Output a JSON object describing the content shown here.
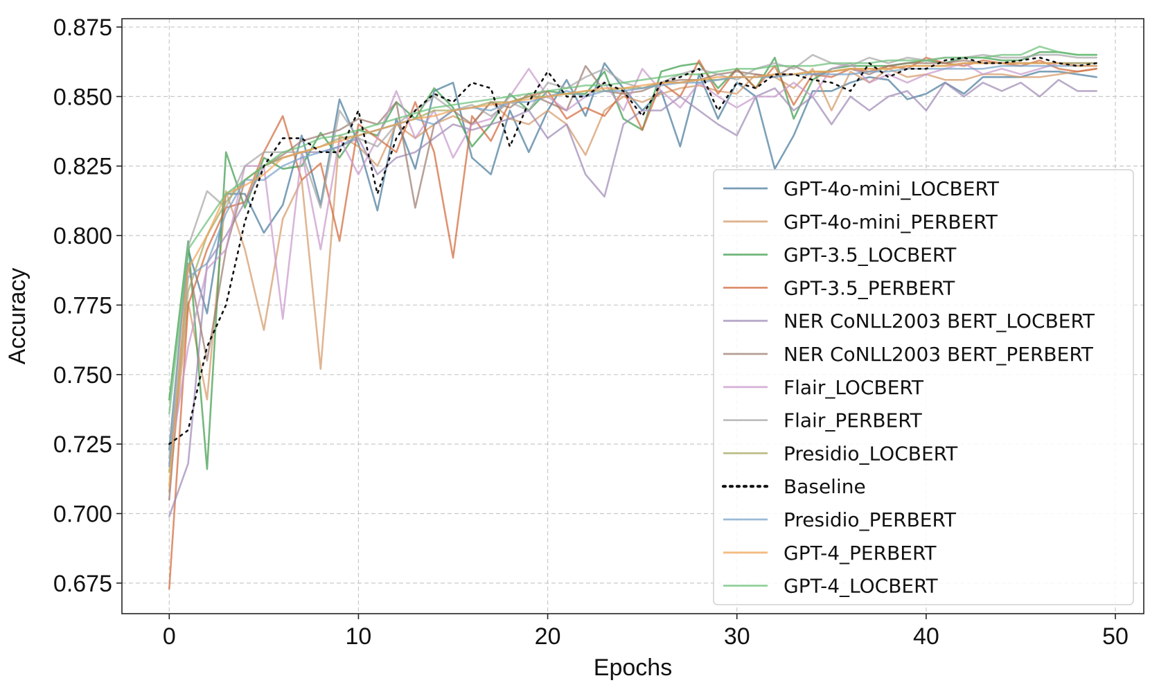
{
  "chart_data": {
    "type": "line",
    "title": "",
    "xlabel": "Epochs",
    "ylabel": "Accuracy",
    "xlim": [
      -2.5,
      51.5
    ],
    "ylim": [
      0.664,
      0.878
    ],
    "xticks": [
      0,
      10,
      20,
      30,
      40,
      50
    ],
    "xtick_labels": [
      "0",
      "10",
      "20",
      "30",
      "40",
      "50"
    ],
    "yticks": [
      0.675,
      0.7,
      0.725,
      0.75,
      0.775,
      0.8,
      0.825,
      0.85,
      0.875
    ],
    "ytick_labels": [
      "0.675",
      "0.700",
      "0.725",
      "0.750",
      "0.775",
      "0.800",
      "0.825",
      "0.850",
      "0.875"
    ],
    "grid": true,
    "legend_position": "center-right",
    "series": [
      {
        "name": "GPT-4o-mini_LOCBERT",
        "color": "#4a7c9d",
        "dashed": false,
        "values": [
          0.723,
          0.795,
          0.772,
          0.815,
          0.815,
          0.801,
          0.811,
          0.836,
          0.811,
          0.849,
          0.833,
          0.809,
          0.842,
          0.824,
          0.852,
          0.855,
          0.828,
          0.822,
          0.845,
          0.83,
          0.845,
          0.856,
          0.843,
          0.862,
          0.853,
          0.845,
          0.852,
          0.832,
          0.858,
          0.842,
          0.855,
          0.85,
          0.824,
          0.836,
          0.852,
          0.852,
          0.855,
          0.857,
          0.856,
          0.849,
          0.851,
          0.855,
          0.851,
          0.857,
          0.857,
          0.857,
          0.859,
          0.859,
          0.858,
          0.857
        ]
      },
      {
        "name": "GPT-4o-mini_PERBERT",
        "color": "#d49a6a",
        "dashed": false,
        "values": [
          0.708,
          0.776,
          0.741,
          0.816,
          0.795,
          0.766,
          0.806,
          0.82,
          0.752,
          0.836,
          0.832,
          0.825,
          0.84,
          0.835,
          0.84,
          0.843,
          0.84,
          0.848,
          0.842,
          0.84,
          0.845,
          0.84,
          0.829,
          0.845,
          0.85,
          0.848,
          0.851,
          0.853,
          0.854,
          0.852,
          0.851,
          0.858,
          0.857,
          0.853,
          0.86,
          0.845,
          0.859,
          0.855,
          0.86,
          0.857,
          0.858,
          0.856,
          0.856,
          0.858,
          0.858,
          0.857,
          0.857,
          0.858,
          0.859,
          0.86
        ]
      },
      {
        "name": "GPT-3.5_LOCBERT",
        "color": "#3f9c4c",
        "dashed": false,
        "values": [
          0.741,
          0.798,
          0.716,
          0.83,
          0.81,
          0.828,
          0.824,
          0.825,
          0.837,
          0.828,
          0.838,
          0.836,
          0.848,
          0.842,
          0.853,
          0.846,
          0.832,
          0.84,
          0.851,
          0.845,
          0.852,
          0.851,
          0.851,
          0.859,
          0.842,
          0.838,
          0.859,
          0.861,
          0.862,
          0.853,
          0.86,
          0.853,
          0.864,
          0.842,
          0.856,
          0.86,
          0.861,
          0.861,
          0.861,
          0.862,
          0.863,
          0.862,
          0.864,
          0.864,
          0.863,
          0.863,
          0.866,
          0.866,
          0.865,
          0.865
        ]
      },
      {
        "name": "GPT-3.5_PERBERT",
        "color": "#d26a3c",
        "dashed": false,
        "values": [
          0.673,
          0.775,
          0.795,
          0.81,
          0.812,
          0.83,
          0.843,
          0.82,
          0.826,
          0.798,
          0.84,
          0.835,
          0.83,
          0.848,
          0.83,
          0.792,
          0.843,
          0.834,
          0.848,
          0.85,
          0.852,
          0.842,
          0.846,
          0.843,
          0.852,
          0.838,
          0.855,
          0.85,
          0.863,
          0.851,
          0.86,
          0.853,
          0.861,
          0.847,
          0.858,
          0.857,
          0.86,
          0.859,
          0.861,
          0.86,
          0.864,
          0.862,
          0.861,
          0.863,
          0.862,
          0.861,
          0.863,
          0.86,
          0.859,
          0.86
        ]
      },
      {
        "name": "NER CoNLL2003 BERT_LOCBERT",
        "color": "#9f8ab6",
        "dashed": false,
        "values": [
          0.699,
          0.718,
          0.79,
          0.8,
          0.812,
          0.825,
          0.828,
          0.83,
          0.83,
          0.832,
          0.835,
          0.822,
          0.828,
          0.83,
          0.835,
          0.84,
          0.838,
          0.84,
          0.842,
          0.845,
          0.835,
          0.84,
          0.822,
          0.814,
          0.84,
          0.845,
          0.845,
          0.85,
          0.845,
          0.84,
          0.836,
          0.85,
          0.853,
          0.845,
          0.85,
          0.84,
          0.85,
          0.845,
          0.85,
          0.852,
          0.845,
          0.855,
          0.85,
          0.855,
          0.852,
          0.855,
          0.85,
          0.856,
          0.852,
          0.852
        ]
      },
      {
        "name": "NER CoNLL2003 BERT_PERBERT",
        "color": "#9c7d70",
        "dashed": false,
        "values": [
          0.705,
          0.79,
          0.755,
          0.795,
          0.82,
          0.825,
          0.829,
          0.834,
          0.836,
          0.838,
          0.842,
          0.84,
          0.848,
          0.81,
          0.84,
          0.845,
          0.84,
          0.848,
          0.846,
          0.851,
          0.848,
          0.845,
          0.861,
          0.852,
          0.851,
          0.852,
          0.855,
          0.856,
          0.856,
          0.858,
          0.859,
          0.858,
          0.857,
          0.861,
          0.858,
          0.859,
          0.86,
          0.858,
          0.861,
          0.862,
          0.862,
          0.862,
          0.863,
          0.862,
          0.862,
          0.862,
          0.862,
          0.862,
          0.862,
          0.862
        ]
      },
      {
        "name": "Flair_LOCBERT",
        "color": "#c99acc",
        "dashed": false,
        "values": [
          0.718,
          0.76,
          0.788,
          0.795,
          0.825,
          0.825,
          0.77,
          0.83,
          0.795,
          0.835,
          0.822,
          0.835,
          0.852,
          0.835,
          0.845,
          0.828,
          0.84,
          0.842,
          0.85,
          0.86,
          0.85,
          0.845,
          0.85,
          0.855,
          0.845,
          0.86,
          0.852,
          0.846,
          0.855,
          0.85,
          0.846,
          0.85,
          0.85,
          0.855,
          0.85,
          0.86,
          0.862,
          0.855,
          0.858,
          0.855,
          0.858,
          0.86,
          0.862,
          0.858,
          0.86,
          0.858,
          0.86,
          0.862,
          0.861,
          0.861
        ]
      },
      {
        "name": "Flair_PERBERT",
        "color": "#a8a8a8",
        "dashed": false,
        "values": [
          0.72,
          0.796,
          0.816,
          0.81,
          0.825,
          0.83,
          0.83,
          0.83,
          0.81,
          0.845,
          0.835,
          0.832,
          0.84,
          0.845,
          0.85,
          0.845,
          0.847,
          0.843,
          0.848,
          0.845,
          0.855,
          0.853,
          0.857,
          0.86,
          0.855,
          0.853,
          0.855,
          0.858,
          0.86,
          0.858,
          0.856,
          0.86,
          0.862,
          0.86,
          0.865,
          0.862,
          0.861,
          0.864,
          0.862,
          0.864,
          0.863,
          0.864,
          0.864,
          0.865,
          0.864,
          0.864,
          0.865,
          0.865,
          0.864,
          0.864
        ]
      },
      {
        "name": "Presidio_LOCBERT",
        "color": "#a6a862",
        "dashed": false,
        "values": [
          0.715,
          0.78,
          0.8,
          0.812,
          0.82,
          0.825,
          0.828,
          0.83,
          0.832,
          0.835,
          0.836,
          0.838,
          0.84,
          0.842,
          0.845,
          0.845,
          0.846,
          0.848,
          0.848,
          0.85,
          0.85,
          0.851,
          0.852,
          0.852,
          0.853,
          0.853,
          0.855,
          0.855,
          0.856,
          0.856,
          0.857,
          0.857,
          0.858,
          0.858,
          0.859,
          0.859,
          0.86,
          0.86,
          0.86,
          0.861,
          0.861,
          0.861,
          0.862,
          0.862,
          0.862,
          0.862,
          0.862,
          0.862,
          0.862,
          0.862
        ]
      },
      {
        "name": "Baseline",
        "color": "#111111",
        "dashed": true,
        "values": [
          0.725,
          0.73,
          0.76,
          0.775,
          0.805,
          0.825,
          0.835,
          0.835,
          0.83,
          0.83,
          0.845,
          0.815,
          0.835,
          0.845,
          0.851,
          0.848,
          0.855,
          0.853,
          0.832,
          0.848,
          0.859,
          0.85,
          0.85,
          0.855,
          0.852,
          0.843,
          0.855,
          0.857,
          0.86,
          0.845,
          0.855,
          0.853,
          0.858,
          0.858,
          0.856,
          0.855,
          0.852,
          0.862,
          0.857,
          0.86,
          0.86,
          0.863,
          0.864,
          0.862,
          0.862,
          0.863,
          0.864,
          0.862,
          0.861,
          0.862
        ]
      },
      {
        "name": "Presidio_PERBERT",
        "color": "#7aa3c9",
        "dashed": false,
        "values": [
          0.717,
          0.785,
          0.79,
          0.808,
          0.82,
          0.82,
          0.825,
          0.828,
          0.83,
          0.832,
          0.836,
          0.838,
          0.84,
          0.842,
          0.84,
          0.845,
          0.846,
          0.845,
          0.848,
          0.848,
          0.85,
          0.852,
          0.85,
          0.852,
          0.852,
          0.853,
          0.854,
          0.855,
          0.855,
          0.856,
          0.857,
          0.857,
          0.857,
          0.858,
          0.858,
          0.858,
          0.858,
          0.859,
          0.859,
          0.86,
          0.86,
          0.86,
          0.86,
          0.86,
          0.861,
          0.861,
          0.861,
          0.861,
          0.861,
          0.861
        ]
      },
      {
        "name": "GPT-4_PERBERT",
        "color": "#f0a458",
        "dashed": false,
        "values": [
          0.71,
          0.788,
          0.8,
          0.815,
          0.818,
          0.822,
          0.828,
          0.83,
          0.832,
          0.834,
          0.836,
          0.838,
          0.84,
          0.842,
          0.843,
          0.845,
          0.846,
          0.847,
          0.848,
          0.849,
          0.85,
          0.851,
          0.852,
          0.853,
          0.853,
          0.854,
          0.855,
          0.855,
          0.856,
          0.857,
          0.857,
          0.857,
          0.858,
          0.858,
          0.859,
          0.859,
          0.86,
          0.86,
          0.86,
          0.861,
          0.861,
          0.861,
          0.862,
          0.862,
          0.862,
          0.862,
          0.862,
          0.862,
          0.861,
          0.861
        ]
      },
      {
        "name": "GPT-4_LOCBERT",
        "color": "#6cc07a",
        "dashed": false,
        "values": [
          0.736,
          0.795,
          0.805,
          0.815,
          0.82,
          0.825,
          0.83,
          0.832,
          0.835,
          0.836,
          0.838,
          0.84,
          0.842,
          0.844,
          0.846,
          0.847,
          0.848,
          0.849,
          0.85,
          0.851,
          0.852,
          0.853,
          0.854,
          0.854,
          0.855,
          0.856,
          0.857,
          0.858,
          0.858,
          0.859,
          0.86,
          0.86,
          0.861,
          0.861,
          0.861,
          0.862,
          0.862,
          0.862,
          0.863,
          0.863,
          0.863,
          0.864,
          0.864,
          0.864,
          0.865,
          0.865,
          0.868,
          0.866,
          0.865,
          0.865
        ]
      }
    ]
  }
}
